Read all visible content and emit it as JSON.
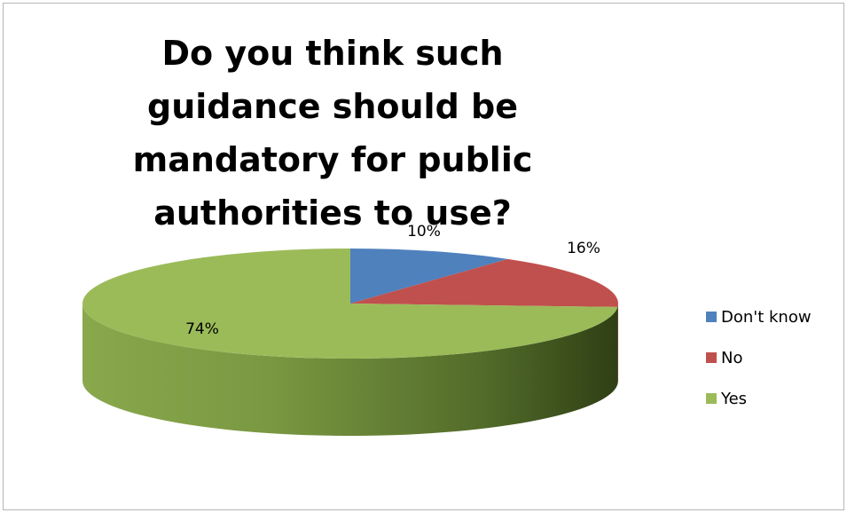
{
  "chart_data": {
    "type": "pie",
    "title": "Do you think such guidance should be mandatory for public authorities to use?",
    "categories": [
      "Don't know",
      "No",
      "Yes"
    ],
    "values": [
      10,
      16,
      74
    ],
    "labels": [
      "10%",
      "16%",
      "74%"
    ],
    "colors": [
      "#4f81bd",
      "#c0504d",
      "#9bbb59"
    ],
    "legend": {
      "position": "right",
      "entries": [
        "Don't know",
        "No",
        "Yes"
      ]
    },
    "style": "3d"
  }
}
